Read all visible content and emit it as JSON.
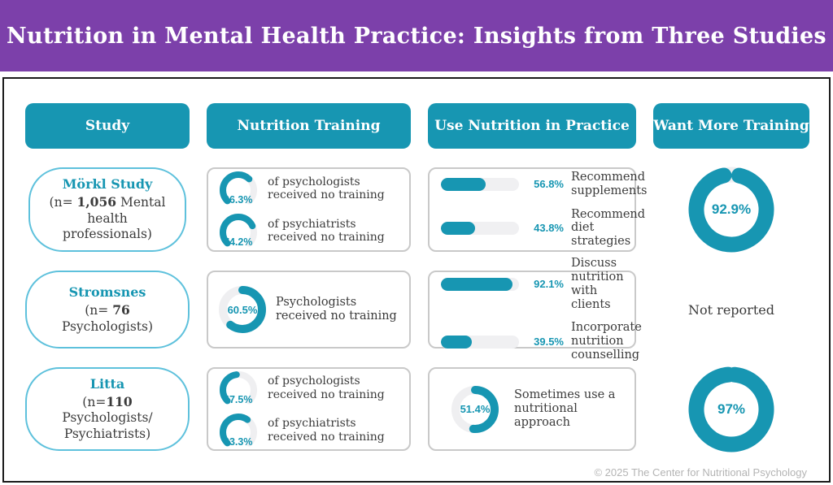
{
  "title": "Nutrition in Mental Health Practice: Insights from Three Studies",
  "footer": "© 2025 The Center for Nutritional Psychology",
  "colors": {
    "banner_purple": "#7c40aa",
    "teal": "#1796b2",
    "track_gray": "#efeff1",
    "card_border": "#c9c9c9",
    "study_border": "#5ec1dc",
    "text_dark": "#3b3b3b"
  },
  "columns": [
    "Study",
    "Nutrition Training",
    "Use Nutrition in Practice",
    "Want More Training"
  ],
  "chart_data": {
    "type": "table",
    "columns": [
      "Study",
      "Nutrition Training",
      "Use Nutrition in Practice",
      "Want More Training"
    ],
    "rows": [
      {
        "study": {
          "name": "Mörkl Study",
          "n_prefix": "(n= ",
          "n": "1,056",
          "n_suffix": " Mental health professionals)"
        },
        "training": [
          {
            "type": "gauge",
            "value": 66.3,
            "label": "66.3%",
            "text": "of psychologists received no training"
          },
          {
            "type": "gauge",
            "value": 74.2,
            "label": "74.2%",
            "text": "of psychiatrists received no training"
          }
        ],
        "practice": [
          {
            "type": "bar",
            "value": 56.8,
            "label": "56.8%",
            "text": "Recommend supplements"
          },
          {
            "type": "bar",
            "value": 43.8,
            "label": "43.8%",
            "text": "Recommend diet strategies"
          }
        ],
        "want_more": {
          "type": "donut",
          "value": 92.9,
          "label": "92.9%"
        }
      },
      {
        "study": {
          "name": "Stromsnes",
          "n_prefix": "(n= ",
          "n": "76",
          "n_suffix": " Psychologists)"
        },
        "training": [
          {
            "type": "ring",
            "value": 60.5,
            "label": "60.5%",
            "text": "Psychologists received no training"
          }
        ],
        "practice": [
          {
            "type": "bar",
            "value": 92.1,
            "label": "92.1%",
            "text": "Discuss nutrition with clients"
          },
          {
            "type": "bar",
            "value": 39.5,
            "label": "39.5%",
            "text": "Incorporate nutrition counselling"
          }
        ],
        "want_more": {
          "type": "text",
          "label": "Not reported"
        }
      },
      {
        "study": {
          "name": "Litta",
          "n_prefix": "(n=",
          "n": "110",
          "n_suffix": " Psychologists/ Psychiatrists)"
        },
        "training": [
          {
            "type": "gauge",
            "value": 47.5,
            "label": "47.5%",
            "text": "of psychologists received no training"
          },
          {
            "type": "gauge",
            "value": 63.3,
            "label": "63.3%",
            "text": "of psychiatrists received no training"
          }
        ],
        "practice": [
          {
            "type": "ring",
            "value": 51.4,
            "label": "51.4%",
            "text": "Sometimes use a nutritional approach"
          }
        ],
        "want_more": {
          "type": "donut",
          "value": 97,
          "label": "97%"
        }
      }
    ]
  }
}
